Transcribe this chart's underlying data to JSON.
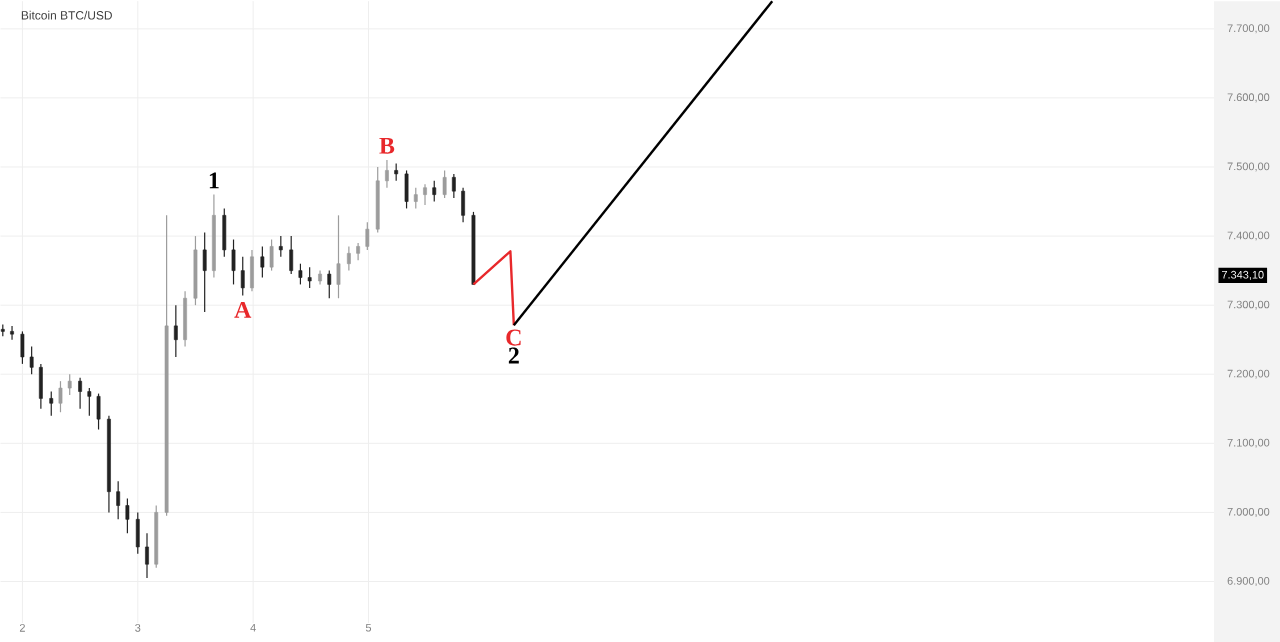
{
  "chart_data": {
    "type": "candlestick",
    "title": "Bitcoin BTC/USD",
    "colors": [
      "#222222",
      "#222222",
      "#222222",
      "#222222",
      "#222222",
      "#222222",
      "#9c9c9c",
      "#9c9c9c",
      "#222222",
      "#222222",
      "#222222",
      "#222222",
      "#222222",
      "#222222",
      "#222222",
      "#222222",
      "#9c9c9c",
      "#9c9c9c",
      "#222222",
      "#9c9c9c",
      "#9c9c9c",
      "#222222",
      "#9c9c9c",
      "#222222",
      "#222222",
      "#222222",
      "#9c9c9c",
      "#222222",
      "#9c9c9c",
      "#222222",
      "#222222",
      "#222222",
      "#222222",
      "#9c9c9c",
      "#222222",
      "#9c9c9c",
      "#9c9c9c",
      "#9c9c9c",
      "#9c9c9c",
      "#9c9c9c",
      "#9c9c9c",
      "#222222",
      "#222222",
      "#9c9c9c",
      "#9c9c9c",
      "#222222",
      "#9c9c9c",
      "#222222",
      "#222222",
      "#222222"
    ],
    "x": [
      1.83,
      1.91,
      2.0,
      2.08,
      2.16,
      2.25,
      2.33,
      2.41,
      2.5,
      2.58,
      2.66,
      2.75,
      2.83,
      2.91,
      3.0,
      3.08,
      3.16,
      3.25,
      3.33,
      3.41,
      3.5,
      3.58,
      3.66,
      3.75,
      3.83,
      3.91,
      3.99,
      4.08,
      4.16,
      4.24,
      4.33,
      4.41,
      4.49,
      4.58,
      4.66,
      4.74,
      4.83,
      4.91,
      4.99,
      5.08,
      5.16,
      5.24,
      5.33,
      5.41,
      5.49,
      5.57,
      5.66,
      5.74,
      5.82,
      5.91
    ],
    "ohlc": [
      [
        7265,
        7272,
        7255,
        7262
      ],
      [
        7262,
        7270,
        7250,
        7258
      ],
      [
        7258,
        7262,
        7215,
        7225
      ],
      [
        7225,
        7240,
        7200,
        7210
      ],
      [
        7210,
        7215,
        7150,
        7165
      ],
      [
        7165,
        7175,
        7140,
        7158
      ],
      [
        7158,
        7190,
        7145,
        7180
      ],
      [
        7180,
        7200,
        7170,
        7190
      ],
      [
        7190,
        7195,
        7150,
        7175
      ],
      [
        7175,
        7180,
        7140,
        7168
      ],
      [
        7168,
        7172,
        7120,
        7135
      ],
      [
        7135,
        7140,
        7000,
        7030
      ],
      [
        7030,
        7045,
        6990,
        7010
      ],
      [
        7010,
        7020,
        6970,
        6990
      ],
      [
        6990,
        7000,
        6940,
        6950
      ],
      [
        6950,
        6970,
        6905,
        6925
      ],
      [
        6925,
        7010,
        6920,
        7000
      ],
      [
        7000,
        7430,
        6995,
        7270
      ],
      [
        7270,
        7300,
        7225,
        7250
      ],
      [
        7250,
        7320,
        7240,
        7310
      ],
      [
        7310,
        7400,
        7300,
        7380
      ],
      [
        7380,
        7405,
        7290,
        7350
      ],
      [
        7350,
        7460,
        7340,
        7430
      ],
      [
        7430,
        7440,
        7370,
        7380
      ],
      [
        7380,
        7395,
        7330,
        7350
      ],
      [
        7350,
        7370,
        7314,
        7325
      ],
      [
        7325,
        7380,
        7320,
        7370
      ],
      [
        7370,
        7385,
        7340,
        7355
      ],
      [
        7355,
        7395,
        7350,
        7385
      ],
      [
        7385,
        7400,
        7370,
        7380
      ],
      [
        7380,
        7400,
        7345,
        7350
      ],
      [
        7350,
        7360,
        7330,
        7340
      ],
      [
        7340,
        7355,
        7325,
        7335
      ],
      [
        7335,
        7350,
        7330,
        7345
      ],
      [
        7345,
        7350,
        7310,
        7330
      ],
      [
        7330,
        7430,
        7310,
        7360
      ],
      [
        7360,
        7385,
        7350,
        7375
      ],
      [
        7375,
        7390,
        7365,
        7385
      ],
      [
        7385,
        7420,
        7380,
        7410
      ],
      [
        7410,
        7500,
        7405,
        7480
      ],
      [
        7480,
        7510,
        7470,
        7495
      ],
      [
        7495,
        7505,
        7480,
        7490
      ],
      [
        7490,
        7495,
        7440,
        7450
      ],
      [
        7450,
        7470,
        7440,
        7460
      ],
      [
        7460,
        7475,
        7445,
        7470
      ],
      [
        7470,
        7480,
        7450,
        7460
      ],
      [
        7460,
        7495,
        7455,
        7485
      ],
      [
        7485,
        7490,
        7455,
        7465
      ],
      [
        7465,
        7470,
        7420,
        7430
      ],
      [
        7430,
        7435,
        7330,
        7330
      ]
    ],
    "series": [
      {
        "type": "line",
        "color": "#e8282b",
        "x": [
          5.91,
          6.23,
          6.26
        ],
        "values": [
          7330,
          7378,
          7271
        ]
      },
      {
        "type": "line",
        "color": "#000000",
        "x": [
          6.26,
          8.5
        ],
        "values": [
          7271,
          7740
        ]
      }
    ],
    "xlim": [
      1.81,
      12.33
    ],
    "ylim": [
      6840,
      7740
    ],
    "xticks": [
      2,
      3,
      4,
      5
    ],
    "yticks": [
      {
        "value": 6900,
        "label": "6.900,00"
      },
      {
        "value": 7000,
        "label": "7.000,00"
      },
      {
        "value": 7100,
        "label": "7.100,00"
      },
      {
        "value": 7200,
        "label": "7.200,00"
      },
      {
        "value": 7300,
        "label": "7.300,00"
      },
      {
        "value": 7400,
        "label": "7.400,00"
      },
      {
        "value": 7500,
        "label": "7.500,00"
      },
      {
        "value": 7600,
        "label": "7.600,00"
      },
      {
        "value": 7700,
        "label": "7.700,00"
      }
    ],
    "grid": true,
    "annotations": [
      {
        "text": "1",
        "x": 3.66,
        "y": 7460
      },
      {
        "text": "A",
        "x": 3.91,
        "y": 7314
      },
      {
        "text": "B",
        "x": 5.16,
        "y": 7510
      },
      {
        "text": "C",
        "x": 6.26,
        "y": 7271
      },
      {
        "text": "2",
        "x": 6.26,
        "y": 7271
      },
      {
        "text": "7.343,10",
        "y": 7343.1
      }
    ]
  }
}
